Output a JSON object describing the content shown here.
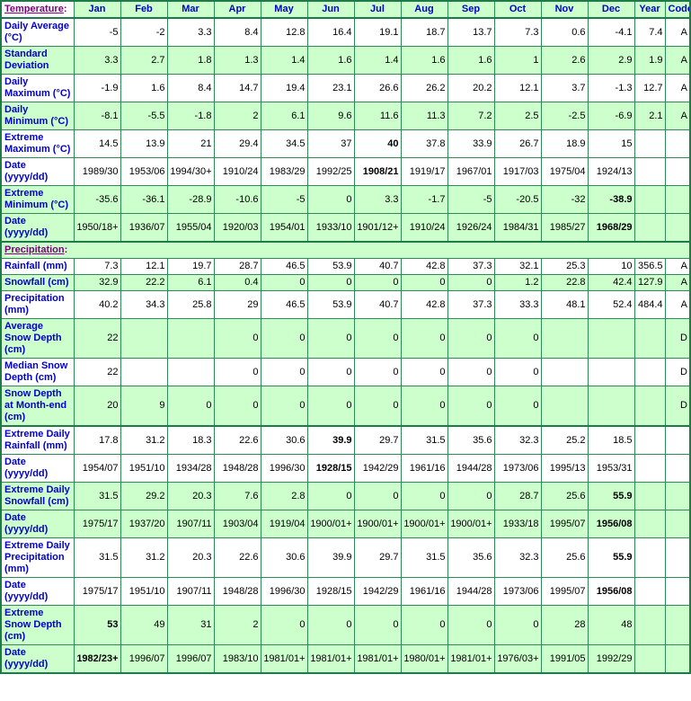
{
  "table": {
    "header": {
      "title": "Temperature",
      "suffix": ":"
    },
    "months": [
      "Jan",
      "Feb",
      "Mar",
      "Apr",
      "May",
      "Jun",
      "Jul",
      "Aug",
      "Sep",
      "Oct",
      "Nov",
      "Dec"
    ],
    "year_label": "Year",
    "code_label": "Code",
    "rows": [
      {
        "type": "data",
        "bg": "white",
        "label": "Daily Average (°C)",
        "values": [
          "-5",
          "-2",
          "3.3",
          "8.4",
          "12.8",
          "16.4",
          "19.1",
          "18.7",
          "13.7",
          "7.3",
          "0.6",
          "-4.1"
        ],
        "year": "7.4",
        "code": "A",
        "bold": []
      },
      {
        "type": "data",
        "bg": "green",
        "label": "Standard Deviation",
        "values": [
          "3.3",
          "2.7",
          "1.8",
          "1.3",
          "1.4",
          "1.6",
          "1.4",
          "1.6",
          "1.6",
          "1",
          "2.6",
          "2.9"
        ],
        "year": "1.9",
        "code": "A",
        "bold": []
      },
      {
        "type": "data",
        "bg": "white",
        "label": "Daily Maximum (°C)",
        "values": [
          "-1.9",
          "1.6",
          "8.4",
          "14.7",
          "19.4",
          "23.1",
          "26.6",
          "26.2",
          "20.2",
          "12.1",
          "3.7",
          "-1.3"
        ],
        "year": "12.7",
        "code": "A",
        "bold": []
      },
      {
        "type": "data",
        "bg": "green",
        "label": "Daily Minimum (°C)",
        "values": [
          "-8.1",
          "-5.5",
          "-1.8",
          "2",
          "6.1",
          "9.6",
          "11.6",
          "11.3",
          "7.2",
          "2.5",
          "-2.5",
          "-6.9"
        ],
        "year": "2.1",
        "code": "A",
        "bold": []
      },
      {
        "type": "data",
        "bg": "white",
        "label": "Extreme Maximum (°C)",
        "values": [
          "14.5",
          "13.9",
          "21",
          "29.4",
          "34.5",
          "37",
          "40",
          "37.8",
          "33.9",
          "26.7",
          "18.9",
          "15"
        ],
        "year": "",
        "code": "",
        "bold": [
          6
        ]
      },
      {
        "type": "data",
        "bg": "white",
        "label": "Date (yyyy/dd)",
        "values": [
          "1989/30",
          "1953/06",
          "1994/30+",
          "1910/24",
          "1983/29",
          "1992/25",
          "1908/21",
          "1919/17",
          "1967/01",
          "1917/03",
          "1975/04",
          "1924/13"
        ],
        "year": "",
        "code": "",
        "bold": [
          6
        ]
      },
      {
        "type": "data",
        "bg": "green",
        "label": "Extreme Minimum (°C)",
        "values": [
          "-35.6",
          "-36.1",
          "-28.9",
          "-10.6",
          "-5",
          "0",
          "3.3",
          "-1.7",
          "-5",
          "-20.5",
          "-32",
          "-38.9"
        ],
        "year": "",
        "code": "",
        "bold": [
          11
        ]
      },
      {
        "type": "data",
        "bg": "green",
        "label": "Date (yyyy/dd)",
        "values": [
          "1950/18+",
          "1936/07",
          "1955/04",
          "1920/03",
          "1954/01",
          "1933/10",
          "1901/12+",
          "1910/24",
          "1926/24",
          "1984/31",
          "1985/27",
          "1968/29"
        ],
        "year": "",
        "code": "",
        "bold": [
          11
        ]
      },
      {
        "type": "section",
        "title": "Precipitation",
        "suffix": ":"
      },
      {
        "type": "data",
        "bg": "white",
        "label": "Rainfall (mm)",
        "values": [
          "7.3",
          "12.1",
          "19.7",
          "28.7",
          "46.5",
          "53.9",
          "40.7",
          "42.8",
          "37.3",
          "32.1",
          "25.3",
          "10"
        ],
        "year": "356.5",
        "code": "A",
        "bold": []
      },
      {
        "type": "data",
        "bg": "green",
        "label": "Snowfall (cm)",
        "values": [
          "32.9",
          "22.2",
          "6.1",
          "0.4",
          "0",
          "0",
          "0",
          "0",
          "0",
          "1.2",
          "22.8",
          "42.4"
        ],
        "year": "127.9",
        "code": "A",
        "bold": []
      },
      {
        "type": "data",
        "bg": "white",
        "label": "Precipitation (mm)",
        "values": [
          "40.2",
          "34.3",
          "25.8",
          "29",
          "46.5",
          "53.9",
          "40.7",
          "42.8",
          "37.3",
          "33.3",
          "48.1",
          "52.4"
        ],
        "year": "484.4",
        "code": "A",
        "bold": []
      },
      {
        "type": "data",
        "bg": "green",
        "label": "Average Snow Depth (cm)",
        "values": [
          "22",
          "",
          "",
          "0",
          "0",
          "0",
          "0",
          "0",
          "0",
          "0",
          "",
          ""
        ],
        "year": "",
        "code": "D",
        "bold": []
      },
      {
        "type": "data",
        "bg": "white",
        "label": "Median Snow Depth (cm)",
        "values": [
          "22",
          "",
          "",
          "0",
          "0",
          "0",
          "0",
          "0",
          "0",
          "0",
          "",
          ""
        ],
        "year": "",
        "code": "D",
        "bold": []
      },
      {
        "type": "data",
        "bg": "green",
        "label": "Snow Depth at Month-end (cm)",
        "values": [
          "20",
          "9",
          "0",
          "0",
          "0",
          "0",
          "0",
          "0",
          "0",
          "0",
          "",
          ""
        ],
        "year": "",
        "code": "D",
        "bold": []
      },
      {
        "type": "data",
        "bg": "white",
        "thick_top": true,
        "label": "Extreme Daily Rainfall (mm)",
        "values": [
          "17.8",
          "31.2",
          "18.3",
          "22.6",
          "30.6",
          "39.9",
          "29.7",
          "31.5",
          "35.6",
          "32.3",
          "25.2",
          "18.5"
        ],
        "year": "",
        "code": "",
        "bold": [
          5
        ]
      },
      {
        "type": "data",
        "bg": "white",
        "label": "Date (yyyy/dd)",
        "values": [
          "1954/07",
          "1951/10",
          "1934/28",
          "1948/28",
          "1996/30",
          "1928/15",
          "1942/29",
          "1961/16",
          "1944/28",
          "1973/06",
          "1995/13",
          "1953/31"
        ],
        "year": "",
        "code": "",
        "bold": [
          5
        ]
      },
      {
        "type": "data",
        "bg": "green",
        "label": "Extreme Daily Snowfall (cm)",
        "values": [
          "31.5",
          "29.2",
          "20.3",
          "7.6",
          "2.8",
          "0",
          "0",
          "0",
          "0",
          "28.7",
          "25.6",
          "55.9"
        ],
        "year": "",
        "code": "",
        "bold": [
          11
        ]
      },
      {
        "type": "data",
        "bg": "green",
        "label": "Date (yyyy/dd)",
        "values": [
          "1975/17",
          "1937/20",
          "1907/11",
          "1903/04",
          "1919/04",
          "1900/01+",
          "1900/01+",
          "1900/01+",
          "1900/01+",
          "1933/18",
          "1995/07",
          "1956/08"
        ],
        "year": "",
        "code": "",
        "bold": [
          11
        ]
      },
      {
        "type": "data",
        "bg": "white",
        "label": "Extreme Daily Precipitation (mm)",
        "values": [
          "31.5",
          "31.2",
          "20.3",
          "22.6",
          "30.6",
          "39.9",
          "29.7",
          "31.5",
          "35.6",
          "32.3",
          "25.6",
          "55.9"
        ],
        "year": "",
        "code": "",
        "bold": [
          11
        ]
      },
      {
        "type": "data",
        "bg": "white",
        "label": "Date (yyyy/dd)",
        "values": [
          "1975/17",
          "1951/10",
          "1907/11",
          "1948/28",
          "1996/30",
          "1928/15",
          "1942/29",
          "1961/16",
          "1944/28",
          "1973/06",
          "1995/07",
          "1956/08"
        ],
        "year": "",
        "code": "",
        "bold": [
          11
        ]
      },
      {
        "type": "data",
        "bg": "green",
        "label": "Extreme Snow Depth (cm)",
        "values": [
          "53",
          "49",
          "31",
          "2",
          "0",
          "0",
          "0",
          "0",
          "0",
          "0",
          "28",
          "48"
        ],
        "year": "",
        "code": "",
        "bold": [
          0
        ]
      },
      {
        "type": "data",
        "bg": "green",
        "label": "Date (yyyy/dd)",
        "values": [
          "1982/23+",
          "1996/07",
          "1996/07",
          "1983/10",
          "1981/01+",
          "1981/01+",
          "1981/01+",
          "1980/01+",
          "1981/01+",
          "1976/03+",
          "1991/05",
          "1992/29"
        ],
        "year": "",
        "code": "",
        "bold": [
          0
        ]
      }
    ]
  }
}
